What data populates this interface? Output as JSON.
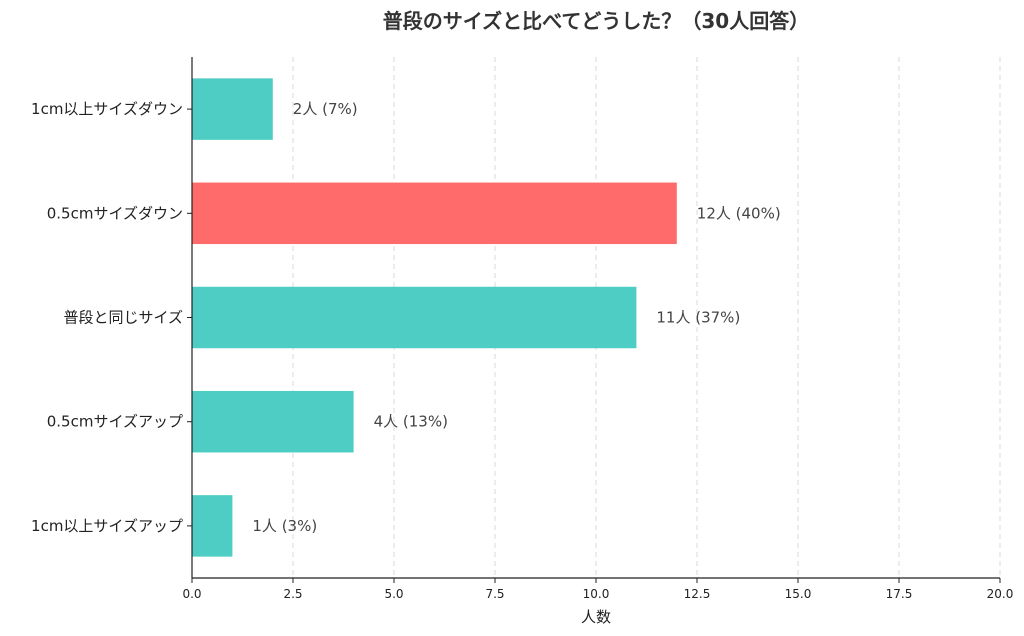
{
  "chart_data": {
    "type": "bar",
    "orientation": "horizontal",
    "title": "普段のサイズと比べてどうした？（30人回答）",
    "xlabel": "人数",
    "ylabel": "",
    "xlim": [
      0,
      20
    ],
    "xticks": [
      "0.0",
      "2.5",
      "5.0",
      "7.5",
      "10.0",
      "12.5",
      "15.0",
      "17.5",
      "20.0"
    ],
    "grid": "vertical dashed",
    "categories": [
      "1cm以上サイズダウン",
      "0.5cmサイズダウン",
      "普段と同じサイズ",
      "0.5cmサイズアップ",
      "1cm以上サイズアップ"
    ],
    "values": [
      2,
      12,
      11,
      4,
      1
    ],
    "data_labels": [
      "2人 (7%)",
      "12人 (40%)",
      "11人 (37%)",
      "4人 (13%)",
      "1人 (3%)"
    ],
    "colors": [
      "#4ecdc4",
      "#ff6b6b",
      "#4ecdc4",
      "#4ecdc4",
      "#4ecdc4"
    ]
  }
}
